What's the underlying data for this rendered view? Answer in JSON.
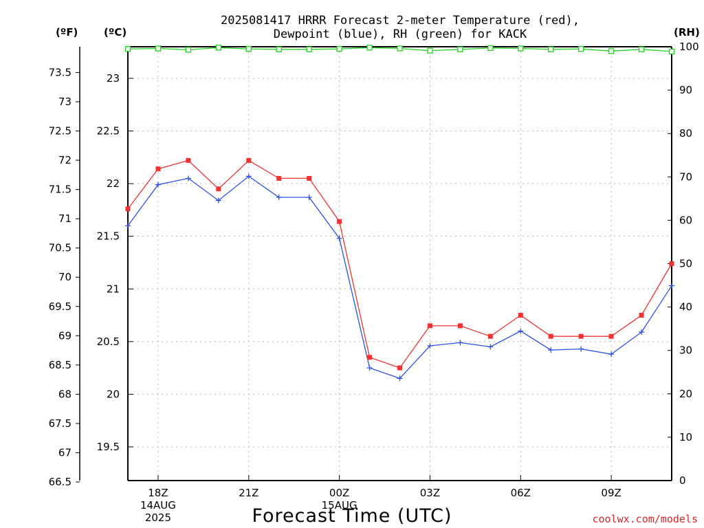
{
  "title": {
    "line1": "2025081417 HRRR Forecast 2-meter Temperature (red),",
    "line2": "Dewpoint (blue), RH (green) for KACK"
  },
  "units": {
    "fahrenheit": "(ºF)",
    "celsius": "(ºC)",
    "rh": "(RH)"
  },
  "xlabel": "Forecast Time (UTC)",
  "credit": "coolwx.com/models",
  "colors": {
    "temperature": "#f03232",
    "dewpoint": "#2850e6",
    "rh": "#1ed21e",
    "grid": "#b4b4b4"
  },
  "chart_data": {
    "type": "line",
    "title": "2025081417 HRRR Forecast 2-meter Temperature (red), Dewpoint (blue), RH (green) for KACK",
    "xlabel": "Forecast Time (UTC)",
    "x_hours": [
      17,
      18,
      19,
      20,
      21,
      22,
      23,
      24,
      25,
      26,
      27,
      28,
      29,
      30,
      31,
      32,
      33,
      34,
      35
    ],
    "x_ticks": [
      {
        "hour": 18,
        "lines": [
          "18Z",
          "14AUG",
          "2025"
        ]
      },
      {
        "hour": 21,
        "lines": [
          "21Z"
        ]
      },
      {
        "hour": 24,
        "lines": [
          "00Z",
          "15AUG"
        ]
      },
      {
        "hour": 27,
        "lines": [
          "03Z"
        ]
      },
      {
        "hour": 30,
        "lines": [
          "06Z"
        ]
      },
      {
        "hour": 33,
        "lines": [
          "09Z"
        ]
      }
    ],
    "xlim": [
      17,
      35
    ],
    "celsius_axis": {
      "ylim": [
        19.18,
        23.3
      ],
      "ticks": [
        "19.5",
        "20",
        "20.5",
        "21",
        "21.5",
        "22",
        "22.5",
        "23"
      ]
    },
    "fahrenheit_axis": {
      "ticks": [
        "66.5",
        "67",
        "67.5",
        "68",
        "68.5",
        "69",
        "69.5",
        "70",
        "70.5",
        "71",
        "71.5",
        "72",
        "72.5",
        "73",
        "73.5"
      ]
    },
    "rh_axis": {
      "ylim": [
        0,
        100
      ],
      "ticks": [
        "0",
        "10",
        "20",
        "30",
        "40",
        "50",
        "60",
        "70",
        "80",
        "90",
        "100"
      ]
    },
    "grid": true,
    "series": [
      {
        "name": "Temperature",
        "axis": "celsius",
        "values": [
          21.76,
          22.14,
          22.22,
          21.95,
          22.22,
          22.05,
          22.05,
          21.64,
          20.35,
          20.25,
          20.65,
          20.65,
          20.55,
          20.75,
          20.55,
          20.55,
          20.55,
          20.75,
          21.24
        ]
      },
      {
        "name": "Dewpoint",
        "axis": "celsius",
        "values": [
          21.6,
          21.99,
          22.05,
          21.84,
          22.07,
          21.87,
          21.87,
          21.48,
          20.25,
          20.15,
          20.46,
          20.49,
          20.45,
          20.6,
          20.42,
          20.43,
          20.38,
          20.59,
          21.03
        ]
      },
      {
        "name": "RH",
        "axis": "rh",
        "values": [
          99.5,
          99.6,
          99.3,
          99.8,
          99.5,
          99.4,
          99.4,
          99.5,
          99.8,
          99.6,
          99.1,
          99.4,
          99.7,
          99.6,
          99.4,
          99.5,
          99.0,
          99.4,
          98.9
        ]
      }
    ]
  }
}
